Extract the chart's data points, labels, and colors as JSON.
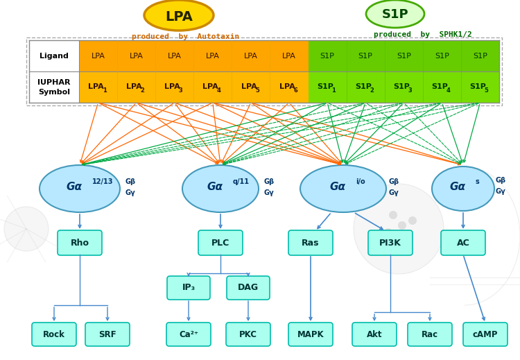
{
  "lpa_label": "LPA",
  "s1p_label": "S1P",
  "lpa_subtitle": "produced  by  Autotaxin",
  "s1p_subtitle": "produced  by  SPHK1/2",
  "lpa_ellipse_fill": "#FFD700",
  "s1p_ellipse_fill": "#DDFFCC",
  "lpa_ellipse_border": "#CC8800",
  "s1p_ellipse_border": "#44AA00",
  "lpa_text_color": "#CC6600",
  "s1p_text_color": "#006600",
  "lpa_ligands": [
    "LPA",
    "LPA",
    "LPA",
    "LPA",
    "LPA",
    "LPA"
  ],
  "s1p_ligands": [
    "S1P",
    "S1P",
    "S1P",
    "S1P",
    "S1P"
  ],
  "box_color": "#AAFFEE",
  "box_border": "#00BBAA",
  "arrow_color_orange": "#FF6600",
  "arrow_color_green": "#00AA44",
  "arrow_color_blue": "#4488CC",
  "g_protein_circle_color": "#B8E8FF",
  "g_protein_circle_border": "#4499BB"
}
